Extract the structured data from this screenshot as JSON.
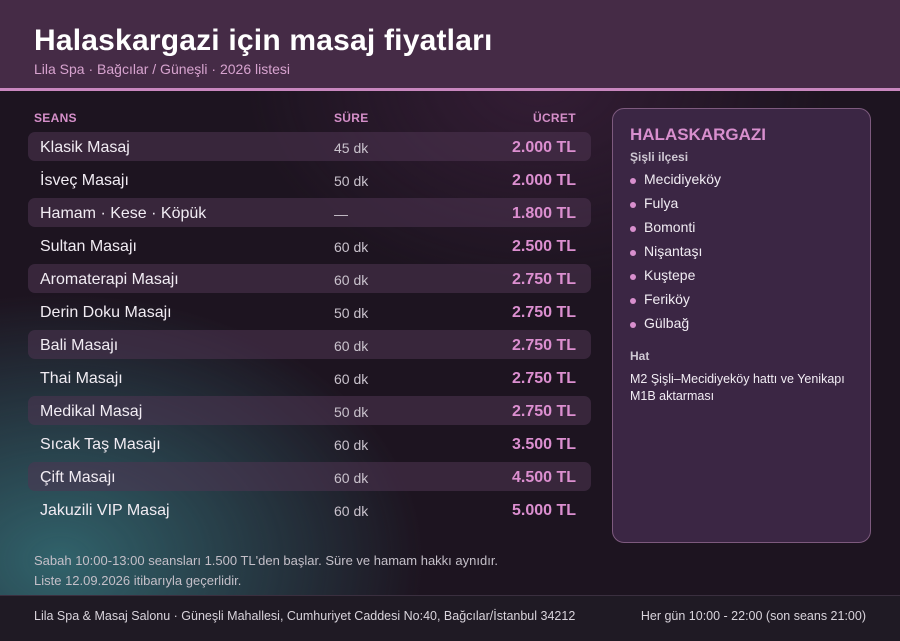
{
  "header": {
    "title": "Halaskargazi için masaj fiyatları",
    "subtitle": "Lila Spa · Bağcılar / Güneşli · 2026 listesi"
  },
  "table": {
    "columns": {
      "session": "SEANS",
      "duration": "SÜRE",
      "price": "ÜCRET"
    },
    "rows": [
      {
        "name": "Klasik Masaj",
        "duration": "45 dk",
        "price": "2.000 TL"
      },
      {
        "name": "İsveç Masajı",
        "duration": "50 dk",
        "price": "2.000 TL"
      },
      {
        "name": "Hamam · Kese · Köpük",
        "duration": "—",
        "price": "1.800 TL"
      },
      {
        "name": "Sultan Masajı",
        "duration": "60 dk",
        "price": "2.500 TL"
      },
      {
        "name": "Aromaterapi Masajı",
        "duration": "60 dk",
        "price": "2.750 TL"
      },
      {
        "name": "Derin Doku Masajı",
        "duration": "50 dk",
        "price": "2.750 TL"
      },
      {
        "name": "Bali Masajı",
        "duration": "60 dk",
        "price": "2.750 TL"
      },
      {
        "name": "Thai Masajı",
        "duration": "60 dk",
        "price": "2.750 TL"
      },
      {
        "name": "Medikal Masaj",
        "duration": "50 dk",
        "price": "2.750 TL"
      },
      {
        "name": "Sıcak Taş Masajı",
        "duration": "60 dk",
        "price": "3.500 TL"
      },
      {
        "name": "Çift Masajı",
        "duration": "60 dk",
        "price": "4.500 TL"
      },
      {
        "name": "Jakuzili VIP Masaj",
        "duration": "60 dk",
        "price": "5.000 TL"
      }
    ]
  },
  "notes": {
    "line1": "Sabah 10:00-13:00 seansları 1.500 TL'den başlar. Süre ve hamam hakkı aynıdır.",
    "line2": "Liste 12.09.2026 itibarıyla geçerlidir."
  },
  "panel": {
    "title": "HALASKARGAZI",
    "district": "Şişli ilçesi",
    "neighborhoods": [
      "Mecidiyeköy",
      "Fulya",
      "Bomonti",
      "Nişantaşı",
      "Kuştepe",
      "Feriköy",
      "Gülbağ"
    ],
    "transit_label": "Hat",
    "transit_text": "M2 Şişli–Mecidiyeköy hattı ve Yenikapı M1B aktarması"
  },
  "footer": {
    "address": "Lila Spa & Masaj Salonu · Güneşli Mahallesi, Cumhuriyet Caddesi No:40, Bağcılar/İstanbul 34212",
    "hours": "Her gün 10:00 - 22:00 (son seans 21:00)"
  },
  "colors": {
    "accent": "#d88fce",
    "header_bg": "#452b46",
    "panel_bg": "#3b2644",
    "page_bg": "#1d1420"
  }
}
